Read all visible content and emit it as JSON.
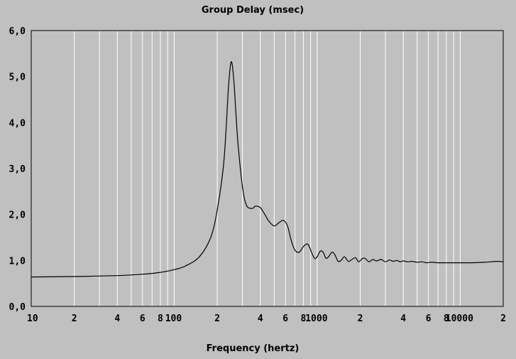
{
  "chart_data": {
    "type": "line",
    "title": "Group Delay (msec)",
    "xlabel": "Frequency (hertz)",
    "ylabel": "",
    "xscale": "log",
    "xlim": [
      10,
      20000
    ],
    "ylim": [
      0,
      6
    ],
    "grid": "vertical",
    "x_tick_labels": [
      {
        "value": 10,
        "label": "10"
      },
      {
        "value": 20,
        "label": "2"
      },
      {
        "value": 40,
        "label": "4"
      },
      {
        "value": 60,
        "label": "6"
      },
      {
        "value": 80,
        "label": "8"
      },
      {
        "value": 100,
        "label": "100"
      },
      {
        "value": 200,
        "label": "2"
      },
      {
        "value": 400,
        "label": "4"
      },
      {
        "value": 600,
        "label": "6"
      },
      {
        "value": 800,
        "label": "8"
      },
      {
        "value": 1000,
        "label": "1000"
      },
      {
        "value": 2000,
        "label": "2"
      },
      {
        "value": 4000,
        "label": "4"
      },
      {
        "value": 6000,
        "label": "6"
      },
      {
        "value": 8000,
        "label": "8"
      },
      {
        "value": 10000,
        "label": "10000"
      },
      {
        "value": 20000,
        "label": "2"
      }
    ],
    "y_tick_labels": [
      {
        "value": 0,
        "label": "0,0"
      },
      {
        "value": 1,
        "label": "1,0"
      },
      {
        "value": 2,
        "label": "2,0"
      },
      {
        "value": 3,
        "label": "3,0"
      },
      {
        "value": 4,
        "label": "4,0"
      },
      {
        "value": 5,
        "label": "5,0"
      },
      {
        "value": 6,
        "label": "6,0"
      }
    ],
    "series": [
      {
        "color": "#000000",
        "x": [
          10,
          20,
          40,
          60,
          80,
          100,
          120,
          150,
          180,
          200,
          220,
          230,
          240,
          250,
          260,
          270,
          280,
          300,
          320,
          350,
          370,
          400,
          430,
          460,
          500,
          540,
          580,
          620,
          660,
          700,
          750,
          800,
          850,
          880,
          920,
          960,
          1000,
          1050,
          1100,
          1150,
          1200,
          1270,
          1330,
          1400,
          1470,
          1550,
          1650,
          1750,
          1850,
          1950,
          2050,
          2150,
          2300,
          2450,
          2600,
          2800,
          3000,
          3200,
          3400,
          3600,
          3800,
          4000,
          4300,
          4600,
          5000,
          5400,
          5800,
          6300,
          7000,
          8000,
          10000,
          12000,
          15000,
          18000,
          20000
        ],
        "y": [
          0.64,
          0.65,
          0.67,
          0.7,
          0.74,
          0.8,
          0.88,
          1.08,
          1.5,
          2.1,
          3.0,
          3.8,
          4.8,
          5.32,
          5.0,
          4.2,
          3.5,
          2.6,
          2.2,
          2.13,
          2.18,
          2.15,
          2.0,
          1.85,
          1.75,
          1.82,
          1.87,
          1.75,
          1.42,
          1.22,
          1.18,
          1.3,
          1.36,
          1.3,
          1.15,
          1.04,
          1.08,
          1.2,
          1.18,
          1.05,
          1.08,
          1.18,
          1.12,
          0.98,
          1.0,
          1.08,
          0.98,
          1.02,
          1.06,
          0.97,
          1.03,
          1.05,
          0.97,
          1.02,
          0.99,
          1.02,
          0.97,
          1.01,
          0.98,
          1.0,
          0.97,
          0.99,
          0.97,
          0.98,
          0.96,
          0.97,
          0.95,
          0.96,
          0.95,
          0.95,
          0.95,
          0.95,
          0.96,
          0.98,
          0.97
        ]
      }
    ]
  }
}
